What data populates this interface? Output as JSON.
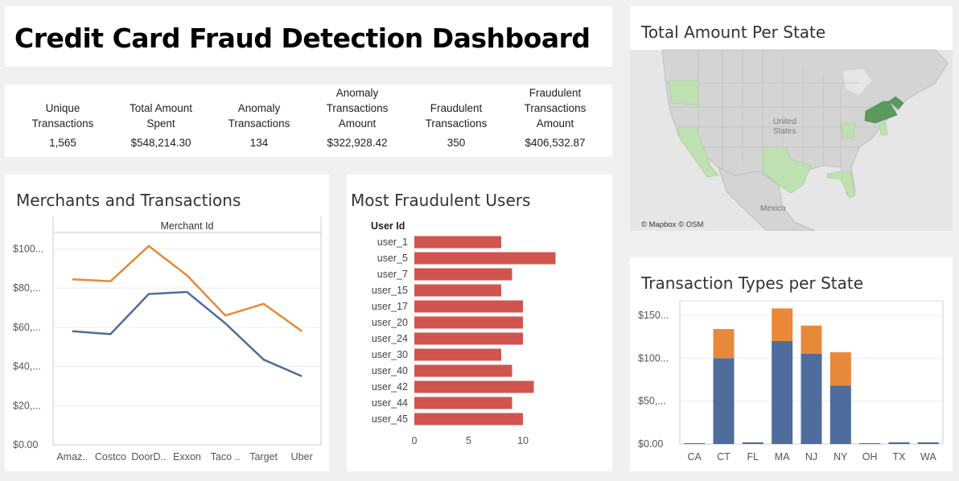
{
  "dashboard": {
    "title": "Credit Card Fraud Detection Dashboard"
  },
  "kpis": [
    {
      "label_lines": [
        "Unique",
        "Transactions"
      ],
      "value": "1,565"
    },
    {
      "label_lines": [
        "Total Amount",
        "Spent"
      ],
      "value": "$548,214.30"
    },
    {
      "label_lines": [
        "Anomaly",
        "Transactions"
      ],
      "value": "134"
    },
    {
      "label_lines": [
        "Anomaly",
        "Transactions",
        "Amount"
      ],
      "value": "$322,928.42"
    },
    {
      "label_lines": [
        "Fraudulent",
        "Transactions"
      ],
      "value": "350"
    },
    {
      "label_lines": [
        "Fraudulent",
        "Transactions",
        "Amount"
      ],
      "value": "$406,532.87"
    }
  ],
  "map": {
    "title": "Total Amount Per State",
    "attribution": "© Mapbox  © OSM",
    "labels": {
      "country_us_line1": "United",
      "country_us_line2": "States",
      "country_mx": "Mexico"
    }
  },
  "colors": {
    "blue": "#4e6d9c",
    "orange": "#e8893a",
    "red": "#d1544f",
    "map_light": "#bfe0b0",
    "map_dark": "#5a9a5e"
  },
  "chart_data": [
    {
      "type": "line",
      "title": "Merchants and Transactions",
      "header": "Merchant Id",
      "categories": [
        "Amaz..",
        "Costco",
        "DoorD..",
        "Exxon",
        "Taco ..",
        "Target",
        "Uber"
      ],
      "series": [
        {
          "color": "#e8893a",
          "values": [
            84.5,
            83.5,
            101.5,
            86.5,
            66,
            72,
            58
          ]
        },
        {
          "color": "#4e6d9c",
          "values": [
            58,
            56.5,
            77,
            78,
            62,
            43.5,
            35
          ]
        }
      ],
      "ylim": [
        0,
        108
      ],
      "yticks": [
        0,
        20,
        40,
        60,
        80,
        100
      ],
      "ytick_labels": [
        "$0.00",
        "$20,...",
        "$40,...",
        "$60,...",
        "$80,...",
        "$100..."
      ]
    },
    {
      "type": "bar",
      "orientation": "horizontal",
      "title": "Most Fraudulent Users",
      "ylabel": "User Id",
      "categories": [
        "user_1",
        "user_5",
        "user_7",
        "user_15",
        "user_17",
        "user_20",
        "user_24",
        "user_30",
        "user_40",
        "user_42",
        "user_44",
        "user_45"
      ],
      "values": [
        8,
        13,
        9,
        8,
        10,
        10,
        10,
        8,
        9,
        11,
        9,
        10
      ],
      "xticks": [
        0,
        5,
        10
      ],
      "xlim": [
        0,
        14
      ]
    },
    {
      "type": "bar",
      "stacked": true,
      "title": "Transaction Types per State",
      "categories": [
        "CA",
        "CT",
        "FL",
        "MA",
        "NJ",
        "NY",
        "OH",
        "TX",
        "WA"
      ],
      "series": [
        {
          "color": "#4e6d9c",
          "values": [
            1,
            100,
            2,
            120,
            105,
            68,
            1,
            2,
            2
          ]
        },
        {
          "color": "#e8893a",
          "values": [
            0,
            34,
            0,
            38,
            33,
            39,
            0,
            0,
            0
          ]
        }
      ],
      "ylim": [
        0,
        165
      ],
      "yticks": [
        0,
        50,
        100,
        150
      ],
      "ytick_labels": [
        "$0.00",
        "$50,...",
        "$100...",
        "$150..."
      ]
    }
  ]
}
